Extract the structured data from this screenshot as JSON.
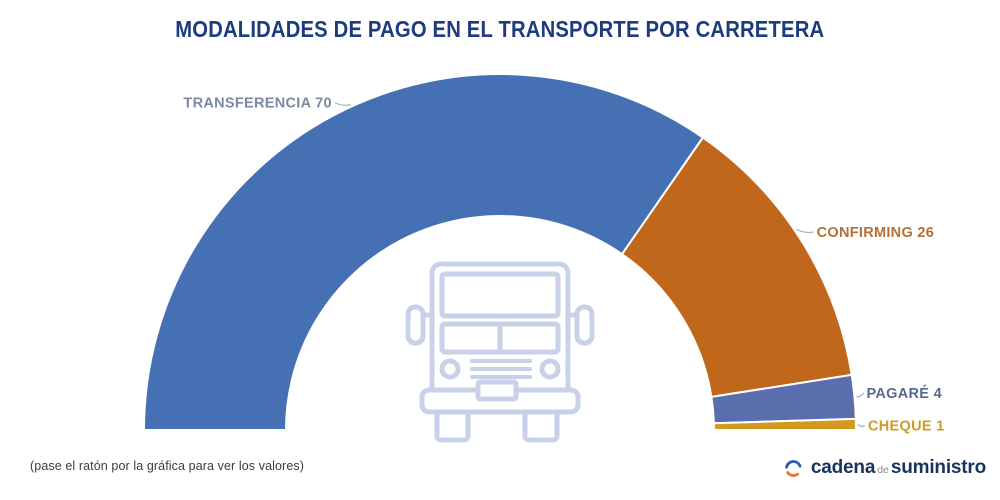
{
  "title": "MODALIDADES DE PAGO EN EL TRANSPORTE POR CARRETERA",
  "footer": {
    "hint": "(pase el ratón por la gráfica para ver los valores)"
  },
  "logo": {
    "text_primary": "cadena",
    "text_middle": "de",
    "text_secondary": "suministro",
    "icon": "circular-arrows-icon",
    "color_primary": "#17345f",
    "color_arc_blue": "#2e5fa3",
    "color_arc_orange": "#e8772e"
  },
  "chart_data": {
    "type": "pie",
    "subtype": "half-donut",
    "title": "MODALIDADES DE PAGO EN EL TRANSPORTE POR CARRETERA",
    "categories": [
      "TRANSFERENCIA",
      "CONFIRMING",
      "PAGARÉ",
      "CHEQUE"
    ],
    "values": [
      70,
      26,
      4,
      1
    ],
    "colors": [
      "#4571b4",
      "#c1671c",
      "#5a6dac",
      "#d3991f"
    ],
    "label_colors": [
      "#7b89a1",
      "#b37038",
      "#57698f",
      "#cf9a26"
    ],
    "labels": [
      "TRANSFERENCIA 70",
      "CONFIRMING 26",
      "PAGARÉ 4",
      "CHEQUE 1"
    ],
    "start_angle_deg": 180,
    "end_angle_deg": 0,
    "inner_radius_ratio": 0.6,
    "legend_position": "none",
    "center_icon": "truck-front-icon"
  }
}
